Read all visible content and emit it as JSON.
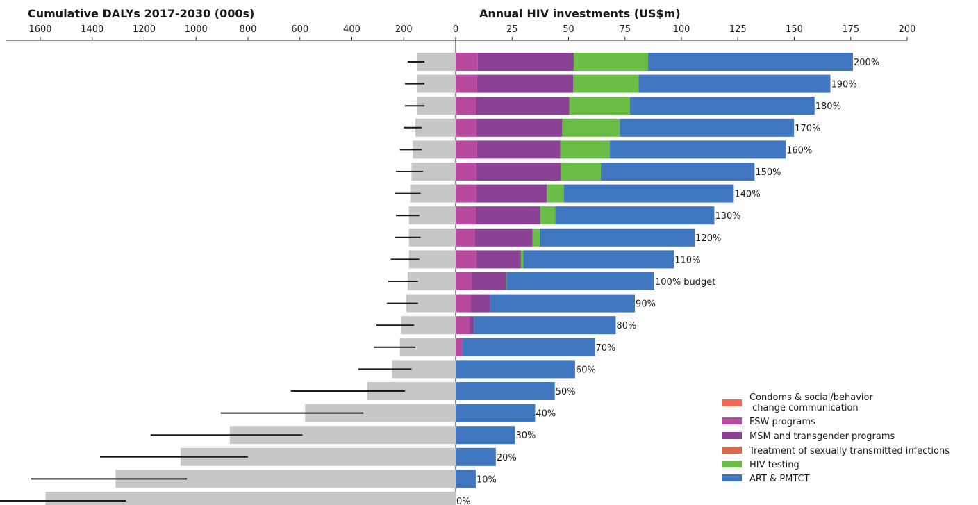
{
  "chart_data": {
    "type": "bar",
    "orientation": "horizontal",
    "left_panel": {
      "title": "Cumulative DALYs 2017-2030 (000s)",
      "xlim": [
        0,
        1600
      ],
      "axis_direction": "reversed",
      "tick_labels": [
        "1600",
        "1400",
        "1200",
        "1000",
        "800",
        "600",
        "400",
        "200",
        "0"
      ],
      "bar_color": "#c6c7c9",
      "error_bar_color": "#1a1a1a"
    },
    "right_panel": {
      "title": "Annual HIV investments (US$m)",
      "xlim": [
        0,
        200
      ],
      "tick_labels": [
        "0",
        "25",
        "50",
        "75",
        "100",
        "125",
        "150",
        "175",
        "200"
      ]
    },
    "categories": [
      "200%",
      "190%",
      "180%",
      "170%",
      "160%",
      "150%",
      "140%",
      "130%",
      "120%",
      "110%",
      "100% budget",
      "90%",
      "80%",
      "70%",
      "60%",
      "50%",
      "40%",
      "30%",
      "20%",
      "10%",
      "0%"
    ],
    "dalys": [
      150,
      150,
      150,
      155,
      165,
      170,
      175,
      180,
      180,
      180,
      185,
      190,
      210,
      215,
      245,
      340,
      580,
      870,
      1060,
      1310,
      1580
    ],
    "daly_error_low": [
      120,
      120,
      120,
      130,
      130,
      125,
      135,
      140,
      135,
      140,
      145,
      145,
      160,
      155,
      170,
      195,
      355,
      590,
      800,
      1035,
      1270
    ],
    "daly_error_high": [
      185,
      195,
      195,
      200,
      215,
      230,
      235,
      230,
      235,
      250,
      260,
      265,
      305,
      315,
      375,
      635,
      905,
      1175,
      1370,
      1635,
      1900
    ],
    "series": [
      {
        "name": "Condoms & social/behavior change communication",
        "color": "#ee6a55",
        "values": [
          0,
          0,
          0,
          0,
          0,
          0,
          0,
          0,
          0,
          0,
          0,
          0,
          0,
          0,
          0,
          0,
          0,
          0,
          0,
          0,
          0
        ]
      },
      {
        "name": "FSW programs",
        "color": "#b74a9e",
        "values": [
          9.8,
          9.5,
          8.9,
          9.2,
          9.5,
          9.2,
          9.2,
          8.9,
          8.6,
          9.2,
          7.1,
          6.5,
          5.9,
          2.8,
          0,
          0,
          0,
          0,
          0,
          0,
          0
        ]
      },
      {
        "name": "MSM and transgender programs",
        "color": "#8b4295",
        "values": [
          42.5,
          42.5,
          41.5,
          38,
          36.9,
          37.5,
          31.1,
          28.6,
          25.5,
          19.7,
          15.2,
          8.6,
          2.2,
          0,
          0,
          0,
          0,
          0,
          0,
          0,
          0
        ]
      },
      {
        "name": "Treatment of sexually transmitted infections",
        "color": "#d8694f",
        "values": [
          0,
          0,
          0,
          0,
          0,
          0,
          0,
          0,
          0,
          0,
          0,
          0,
          0,
          0,
          0,
          0,
          0,
          0,
          0,
          0,
          0
        ]
      },
      {
        "name": "HIV testing",
        "color": "#6abd45",
        "values": [
          32.9,
          29.0,
          26.8,
          25.5,
          21.9,
          17.6,
          7.6,
          6.6,
          3.1,
          1.0,
          0.3,
          0,
          0,
          0,
          0,
          0,
          0,
          0,
          0,
          0,
          0
        ]
      },
      {
        "name": "ART & PMTCT",
        "color": "#3f76bf",
        "values": [
          90.8,
          85.0,
          81.8,
          77.2,
          77.9,
          68.1,
          75.3,
          70.5,
          68.7,
          66.8,
          65.4,
          64.3,
          62.8,
          58.9,
          52.9,
          43.9,
          35.2,
          26.3,
          17.8,
          8.9,
          0
        ]
      }
    ]
  }
}
